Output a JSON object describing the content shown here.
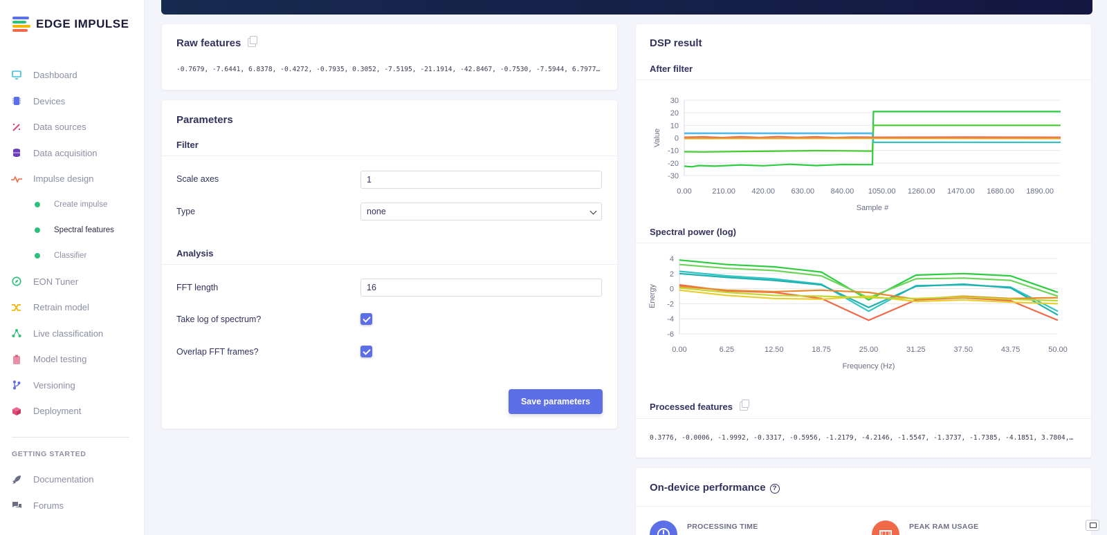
{
  "brand": {
    "name": "EDGE IMPULSE"
  },
  "sidebar": {
    "items": [
      {
        "label": "Dashboard",
        "icon": "monitor-icon",
        "color": "#3fbfd9"
      },
      {
        "label": "Devices",
        "icon": "chip-icon",
        "color": "#5d6fe6"
      },
      {
        "label": "Data sources",
        "icon": "wand-icon",
        "color": "#e0457b"
      },
      {
        "label": "Data acquisition",
        "icon": "database-icon",
        "color": "#6a3fbf"
      },
      {
        "label": "Impulse design",
        "icon": "pulse-icon",
        "color": "#f06a4a"
      }
    ],
    "subitems": [
      {
        "label": "Create impulse"
      },
      {
        "label": "Spectral features",
        "active": true
      },
      {
        "label": "Classifier"
      }
    ],
    "items2": [
      {
        "label": "EON Tuner",
        "icon": "compass-icon",
        "color": "#2ebf7c"
      },
      {
        "label": "Retrain model",
        "icon": "shuffle-icon",
        "color": "#f2b705"
      },
      {
        "label": "Live classification",
        "icon": "network-icon",
        "color": "#2ebf7c"
      },
      {
        "label": "Model testing",
        "icon": "clipboard-icon",
        "color": "#e88fa8"
      },
      {
        "label": "Versioning",
        "icon": "branch-icon",
        "color": "#5d6fe6"
      },
      {
        "label": "Deployment",
        "icon": "box-icon",
        "color": "#e0457b"
      }
    ],
    "section_label": "GETTING STARTED",
    "help": [
      {
        "label": "Documentation",
        "icon": "rocket-icon",
        "color": "#6b6e85"
      },
      {
        "label": "Forums",
        "icon": "chat-icon",
        "color": "#6b6e85"
      }
    ]
  },
  "raw": {
    "title": "Raw features",
    "values": "-0.7679, -7.6441, 6.8378, -0.4272, -0.7935, 0.3052, -7.5195, -21.1914, -42.8467, -0.7530, -7.5944, 6.7977, -0…"
  },
  "params": {
    "title": "Parameters",
    "filter": {
      "heading": "Filter",
      "scale_label": "Scale axes",
      "scale_value": "1",
      "type_label": "Type",
      "type_value": "none"
    },
    "analysis": {
      "heading": "Analysis",
      "fft_label": "FFT length",
      "fft_value": "16",
      "log_label": "Take log of spectrum?",
      "log_checked": true,
      "overlap_label": "Overlap FFT frames?",
      "overlap_checked": true
    },
    "save_label": "Save parameters"
  },
  "dsp": {
    "title": "DSP result",
    "after_filter_title": "After filter",
    "spectral_title": "Spectral power (log)",
    "processed_title": "Processed features",
    "processed_values": "0.3776, -0.0006, -1.9992, -0.3317, -0.5956, -1.2179, -4.2146, -1.5547, -1.3737, -1.7385, -4.1851, 3.7804, -0…"
  },
  "perf": {
    "title": "On-device performance",
    "processing_label": "PROCESSING TIME",
    "ram_label": "PEAK RAM USAGE",
    "colors": {
      "processing": "#5d6fe6",
      "ram": "#f06a4a"
    }
  },
  "chart_data": [
    {
      "type": "line",
      "title": "After filter",
      "xlabel": "Sample #",
      "ylabel": "Value",
      "xlim": [
        0,
        2000
      ],
      "ylim": [
        -30,
        30
      ],
      "x_ticks": [
        "0.00",
        "210.00",
        "420.00",
        "630.00",
        "840.00",
        "1050.00",
        "1260.00",
        "1470.00",
        "1680.00",
        "1890.00"
      ],
      "y_ticks": [
        "30",
        "20",
        "10",
        "0",
        "-10",
        "-20",
        "-30"
      ],
      "series": [
        {
          "color": "#2ecc40",
          "points": [
            [
              0,
              -22.5
            ],
            [
              40,
              -23
            ],
            [
              80,
              -22
            ],
            [
              160,
              -22.5
            ],
            [
              300,
              -21.5
            ],
            [
              420,
              -22.2
            ],
            [
              560,
              -21
            ],
            [
              700,
              -22
            ],
            [
              840,
              -21.2
            ],
            [
              1000,
              -21.3
            ],
            [
              1005,
              21
            ],
            [
              1200,
              21
            ],
            [
              1600,
              21
            ],
            [
              2000,
              21
            ]
          ]
        },
        {
          "color": "#46cc2e",
          "points": [
            [
              0,
              -11
            ],
            [
              100,
              -11.2
            ],
            [
              300,
              -10.8
            ],
            [
              500,
              -10.5
            ],
            [
              700,
              -10.2
            ],
            [
              840,
              -10.3
            ],
            [
              1000,
              -10.5
            ],
            [
              1005,
              10
            ],
            [
              1400,
              10
            ],
            [
              2000,
              10
            ]
          ]
        },
        {
          "color": "#33c4c4",
          "points": [
            [
              0,
              3.5
            ],
            [
              300,
              3.6
            ],
            [
              600,
              3.5
            ],
            [
              1000,
              3.5
            ],
            [
              1005,
              -3.5
            ],
            [
              1500,
              -3.5
            ],
            [
              2000,
              -3.5
            ]
          ]
        },
        {
          "color": "#5bb8f0",
          "points": [
            [
              0,
              3.8
            ],
            [
              500,
              3.8
            ],
            [
              1000,
              3.8
            ]
          ]
        },
        {
          "color": "#f06a4a",
          "points": [
            [
              0,
              0.5
            ],
            [
              100,
              0.8
            ],
            [
              200,
              0.2
            ],
            [
              300,
              0.9
            ],
            [
              400,
              0.3
            ],
            [
              500,
              1
            ],
            [
              600,
              0.4
            ],
            [
              700,
              0.8
            ],
            [
              800,
              0.2
            ],
            [
              900,
              0.6
            ],
            [
              1000,
              0.5
            ],
            [
              1500,
              0.6
            ],
            [
              2000,
              0.5
            ]
          ]
        },
        {
          "color": "#e0a92e",
          "points": [
            [
              0,
              -0.5
            ],
            [
              1000,
              -0.4
            ],
            [
              2000,
              -0.5
            ]
          ]
        }
      ]
    },
    {
      "type": "line",
      "title": "Spectral power (log)",
      "xlabel": "Frequency (Hz)",
      "ylabel": "Energy",
      "xlim": [
        0,
        50
      ],
      "ylim": [
        -6,
        4
      ],
      "x_ticks": [
        "0.00",
        "6.25",
        "12.50",
        "18.75",
        "25.00",
        "31.25",
        "37.50",
        "43.75",
        "50.00"
      ],
      "y_ticks": [
        "4",
        "2",
        "0",
        "-2",
        "-4",
        "-6"
      ],
      "series": [
        {
          "color": "#2ecc40",
          "points": [
            [
              0,
              3.8
            ],
            [
              6.25,
              3.2
            ],
            [
              12.5,
              2.9
            ],
            [
              18.75,
              2.2
            ],
            [
              25,
              -1.5
            ],
            [
              31.25,
              1.8
            ],
            [
              37.5,
              2.0
            ],
            [
              43.75,
              1.7
            ],
            [
              50,
              -0.5
            ]
          ]
        },
        {
          "color": "#6dd45a",
          "points": [
            [
              0,
              3.2
            ],
            [
              6.25,
              2.7
            ],
            [
              12.5,
              2.4
            ],
            [
              18.75,
              1.7
            ],
            [
              25,
              -1.2
            ],
            [
              31.25,
              1.3
            ],
            [
              37.5,
              1.4
            ],
            [
              43.75,
              1.1
            ],
            [
              50,
              -1.0
            ]
          ]
        },
        {
          "color": "#33c4c4",
          "points": [
            [
              0,
              2.3
            ],
            [
              6.25,
              1.7
            ],
            [
              12.5,
              1.3
            ],
            [
              18.75,
              0.6
            ],
            [
              25,
              -3.0
            ],
            [
              31.25,
              0.4
            ],
            [
              37.5,
              0.5
            ],
            [
              43.75,
              0.2
            ],
            [
              50,
              -3.0
            ]
          ]
        },
        {
          "color": "#1fb0b0",
          "points": [
            [
              0,
              2.0
            ],
            [
              6.25,
              1.5
            ],
            [
              12.5,
              1.1
            ],
            [
              18.75,
              0.5
            ],
            [
              25,
              -2.5
            ],
            [
              31.25,
              0.3
            ],
            [
              37.5,
              0.6
            ],
            [
              43.75,
              0.1
            ],
            [
              50,
              -3.5
            ]
          ]
        },
        {
          "color": "#f06a4a",
          "points": [
            [
              0,
              0.5
            ],
            [
              6.25,
              -0.3
            ],
            [
              12.5,
              -0.5
            ],
            [
              18.75,
              -1.3
            ],
            [
              25,
              -4.2
            ],
            [
              31.25,
              -1.5
            ],
            [
              37.5,
              -1.2
            ],
            [
              43.75,
              -1.6
            ],
            [
              50,
              -4.2
            ]
          ]
        },
        {
          "color": "#e8892e",
          "points": [
            [
              0,
              0.3
            ],
            [
              6.25,
              -0.2
            ],
            [
              12.5,
              -0.4
            ],
            [
              18.75,
              -0.2
            ],
            [
              25,
              -0.5
            ],
            [
              31.25,
              -1.4
            ],
            [
              37.5,
              -1.0
            ],
            [
              43.75,
              -1.3
            ],
            [
              50,
              -1.2
            ]
          ]
        },
        {
          "color": "#e8cf2e",
          "points": [
            [
              0,
              -0.2
            ],
            [
              6.25,
              -0.9
            ],
            [
              12.5,
              -1.3
            ],
            [
              18.75,
              -1.4
            ],
            [
              25,
              -1.0
            ],
            [
              31.25,
              -1.7
            ],
            [
              37.5,
              -1.5
            ],
            [
              43.75,
              -1.8
            ],
            [
              50,
              -2.0
            ]
          ]
        },
        {
          "color": "#c4d62e",
          "points": [
            [
              0,
              0.1
            ],
            [
              6.25,
              -0.5
            ],
            [
              12.5,
              -0.9
            ],
            [
              18.75,
              -1.0
            ],
            [
              25,
              -1.2
            ],
            [
              31.25,
              -1.3
            ],
            [
              37.5,
              -1.1
            ],
            [
              43.75,
              -1.4
            ],
            [
              50,
              -1.6
            ]
          ]
        }
      ]
    }
  ]
}
